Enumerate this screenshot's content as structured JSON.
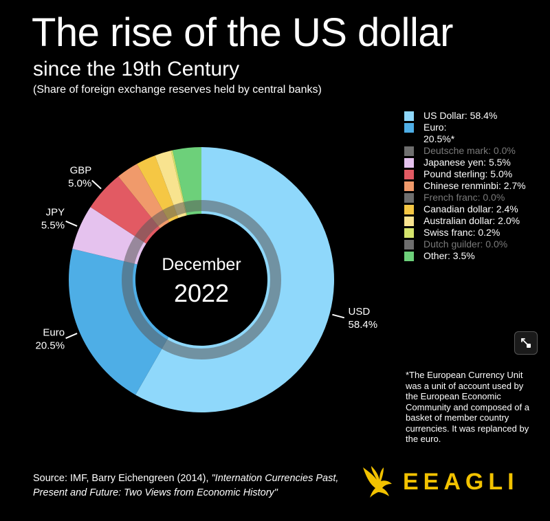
{
  "header": {
    "title": "The rise of the US dollar",
    "subtitle": "since the 19th Century",
    "caption": "(Share of foreign exchange reserves held by central banks)"
  },
  "chart_data": {
    "type": "donut",
    "center_label": {
      "month": "December",
      "year": "2022"
    },
    "slices": [
      {
        "name": "US Dollar",
        "value": 58.4,
        "color": "#8fd8fb",
        "short": "USD",
        "callout": "58.4%"
      },
      {
        "name": "Euro",
        "value": 20.5,
        "color": "#4eaee6",
        "short": "Euro",
        "callout": "20.5%"
      },
      {
        "name": "Japanese yen",
        "value": 5.5,
        "color": "#e5c2ee",
        "short": "JPY",
        "callout": "5.5%"
      },
      {
        "name": "Pound sterling",
        "value": 5.0,
        "color": "#e25a63",
        "short": "GBP",
        "callout": "5.0%"
      },
      {
        "name": "Chinese renminbi",
        "value": 2.7,
        "color": "#f09a6b"
      },
      {
        "name": "Canadian dollar",
        "value": 2.4,
        "color": "#f5c744"
      },
      {
        "name": "Australian dollar",
        "value": 2.0,
        "color": "#f8e38f"
      },
      {
        "name": "Swiss franc",
        "value": 0.2,
        "color": "#d4e36b"
      },
      {
        "name": "Other",
        "value": 3.5,
        "color": "#6dd07a"
      }
    ]
  },
  "legend": {
    "items": [
      {
        "label": "US Dollar: 58.4%",
        "color": "#8fd8fb",
        "zero": false
      },
      {
        "label": "Euro:",
        "label2": "20.5%*",
        "color": "#4eaee6",
        "zero": false
      },
      {
        "label": "Deutsche mark: 0.0%",
        "color": "#6e6e6e",
        "zero": true
      },
      {
        "label": "Japanese yen: 5.5%",
        "color": "#e5c2ee",
        "zero": false
      },
      {
        "label": "Pound sterling: 5.0%",
        "color": "#e25a63",
        "zero": false
      },
      {
        "label": "Chinese renminbi: 2.7%",
        "color": "#f09a6b",
        "zero": false
      },
      {
        "label": "French franc: 0.0%",
        "color": "#6e6e6e",
        "zero": true
      },
      {
        "label": "Canadian dollar: 2.4%",
        "color": "#f5c744",
        "zero": false
      },
      {
        "label": "Australian dollar: 2.0%",
        "color": "#f8e38f",
        "zero": false
      },
      {
        "label": "Swiss franc: 0.2%",
        "color": "#d4e36b",
        "zero": false
      },
      {
        "label": "Dutch guilder: 0.0%",
        "color": "#6e6e6e",
        "zero": true
      },
      {
        "label": "Other: 3.5%",
        "color": "#6dd07a",
        "zero": false
      }
    ]
  },
  "footnote": "*The European Currency Unit was a unit of account used by the European Economic Community and composed of a basket of member country currencies. It was replanced by the euro.",
  "source": {
    "prefix": "Source: IMF, Barry Eichengreen (2014), ",
    "italic": "\"Internation Currencies Past, Present and Future: Two Views from Economic History\""
  },
  "brand": {
    "name": "EEAGLI",
    "color": "#f2c200"
  },
  "toolbar": {
    "expand_icon": "expand-icon"
  }
}
